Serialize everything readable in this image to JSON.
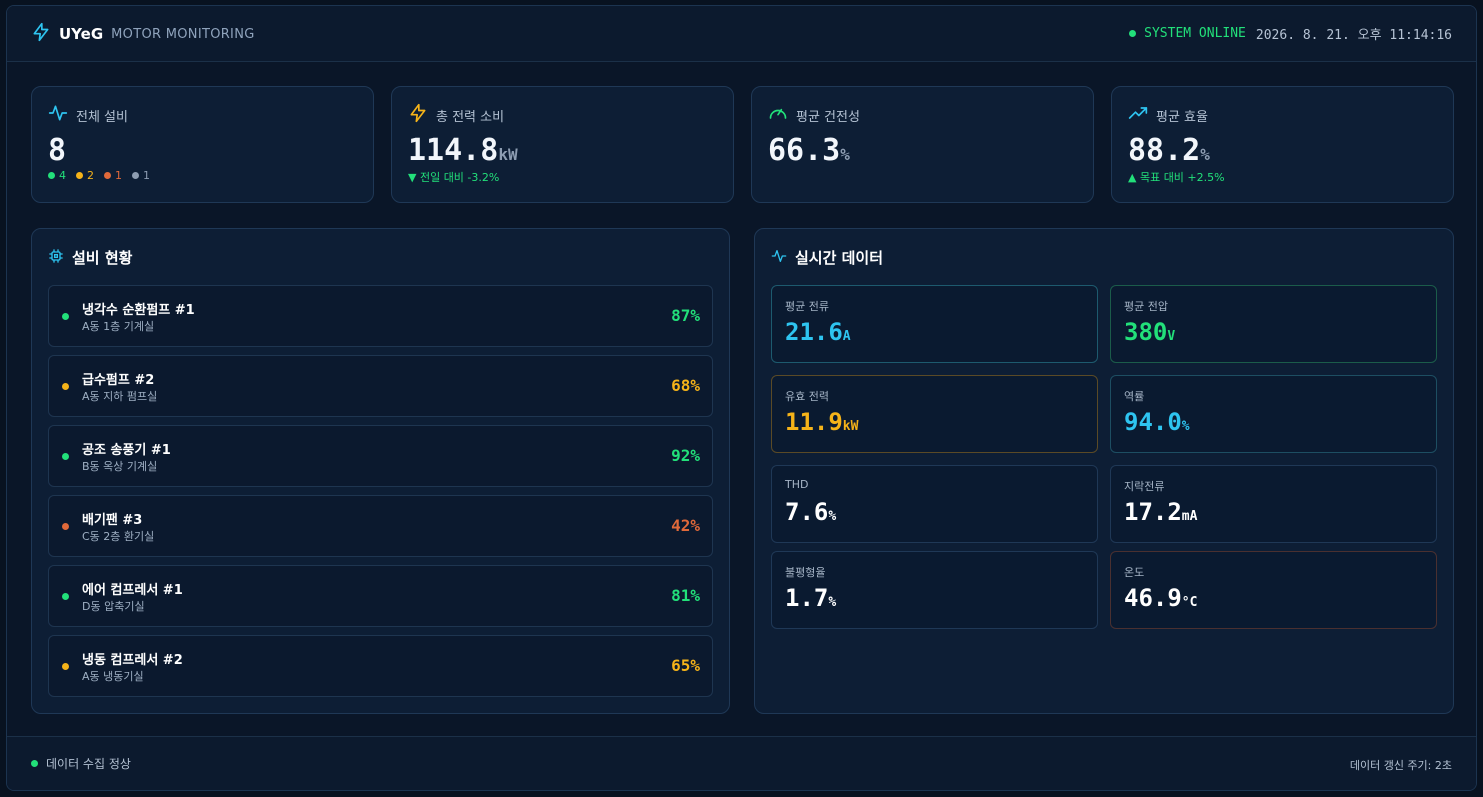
{
  "header": {
    "brand_name": "UYeG",
    "brand_sub": "MOTOR MONITORING",
    "status": "SYSTEM ONLINE",
    "datetime": "2026. 8. 21. 오후 11:14:16"
  },
  "kpis": [
    {
      "label": "전체 설비",
      "value": "8",
      "unit": "",
      "icon": "activity-icon"
    },
    {
      "label": "총 전력 소비",
      "value": "114.8",
      "unit": "kW",
      "sub": "▼ 전일 대비 -3.2%",
      "icon": "lightning-icon"
    },
    {
      "label": "평균 건전성",
      "value": "66.3",
      "unit": "%",
      "icon": "gauge-icon"
    },
    {
      "label": "평균 효율",
      "value": "88.2",
      "unit": "%",
      "sub": "▲ 목표 대비 +2.5%",
      "icon": "trending-up-icon"
    }
  ],
  "status_counts": [
    {
      "count": "4",
      "color": "#22e07a"
    },
    {
      "count": "2",
      "color": "#f5b319"
    },
    {
      "count": "1",
      "color": "#e0693a"
    },
    {
      "count": "1",
      "color": "#8d9db2"
    }
  ],
  "devices_panel": {
    "title": "설비 현황",
    "items": [
      {
        "name": "냉각수 순환펌프 #1",
        "location": "A동 1층 기계실",
        "health": "87%",
        "color": "#22e07a"
      },
      {
        "name": "급수펌프 #2",
        "location": "A동 지하 펌프실",
        "health": "68%",
        "color": "#f5b319"
      },
      {
        "name": "공조 송풍기 #1",
        "location": "B동 옥상 기계실",
        "health": "92%",
        "color": "#22e07a"
      },
      {
        "name": "배기팬 #3",
        "location": "C동 2층 환기실",
        "health": "42%",
        "color": "#e0693a"
      },
      {
        "name": "에어 컴프레서 #1",
        "location": "D동 압축기실",
        "health": "81%",
        "color": "#22e07a"
      },
      {
        "name": "냉동 컴프레서 #2",
        "location": "A동 냉동기실",
        "health": "65%",
        "color": "#f5b319"
      }
    ]
  },
  "realtime_panel": {
    "title": "실시간 데이터",
    "metrics": [
      {
        "label": "평균 전류",
        "value": "21.6",
        "unit": "A",
        "color": "#2ec4f0",
        "border": "#1d5a6e"
      },
      {
        "label": "평균 전압",
        "value": "380",
        "unit": "V",
        "color": "#22e07a",
        "border": "#1b5c4a"
      },
      {
        "label": "유효 전력",
        "value": "11.9",
        "unit": "kW",
        "color": "#f5b319",
        "border": "#5a4a26"
      },
      {
        "label": "역률",
        "value": "94.0",
        "unit": "%",
        "color": "#2ec4f0",
        "border": "#1d4e62"
      },
      {
        "label": "THD",
        "value": "7.6",
        "unit": "%",
        "color": "#ffffff",
        "border": "#1f3856"
      },
      {
        "label": "지락전류",
        "value": "17.2",
        "unit": "mA",
        "color": "#ffffff",
        "border": "#1f3856"
      },
      {
        "label": "불평형율",
        "value": "1.7",
        "unit": "%",
        "color": "#ffffff",
        "border": "#1f3856"
      },
      {
        "label": "온도",
        "value": "46.9",
        "unit": "°C",
        "color": "#ffffff",
        "border": "#4a3030"
      }
    ]
  },
  "footer": {
    "status": "데이터 수집 정상",
    "refresh": "데이터 갱신 주기: 2초"
  },
  "colors": {
    "accent": "#2ec4f0",
    "ok": "#22e07a",
    "warn": "#f5b319",
    "alert": "#e0693a",
    "offline": "#8d9db2"
  }
}
